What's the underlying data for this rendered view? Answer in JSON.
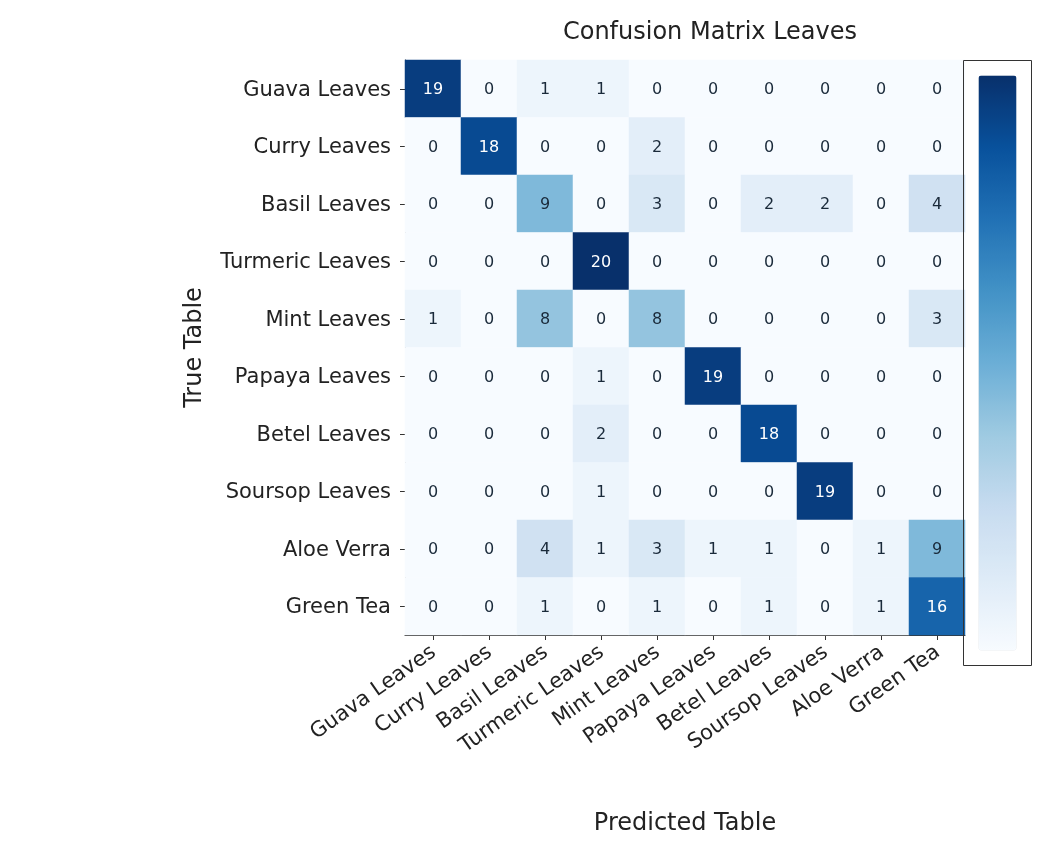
{
  "chart_data": {
    "type": "heatmap",
    "title": "Confusion Matrix Leaves",
    "xlabel": "Predicted Table",
    "ylabel": "True Table",
    "data_labels": true,
    "categories": [
      "Guava Leaves",
      "Curry Leaves",
      "Basil Leaves",
      "Turmeric Leaves",
      "Mint Leaves",
      "Papaya Leaves",
      "Betel Leaves",
      "Soursop Leaves",
      "Aloe Verra",
      "Green Tea"
    ],
    "y_categories": [
      "Guava Leaves",
      "Curry Leaves",
      "Basil Leaves",
      "Turmeric Leaves",
      "Mint Leaves",
      "Papaya Leaves",
      "Betel Leaves",
      "Soursop Leaves",
      "Aloe Verra",
      "Green Tea"
    ],
    "cells": [
      [
        19,
        0,
        1,
        1,
        0,
        0,
        0,
        0,
        0,
        0
      ],
      [
        0,
        18,
        0,
        0,
        2,
        0,
        0,
        0,
        0,
        0
      ],
      [
        0,
        0,
        9,
        0,
        3,
        0,
        2,
        2,
        0,
        4
      ],
      [
        0,
        0,
        0,
        20,
        0,
        0,
        0,
        0,
        0,
        0
      ],
      [
        1,
        0,
        8,
        0,
        8,
        0,
        0,
        0,
        0,
        3
      ],
      [
        0,
        0,
        0,
        1,
        0,
        19,
        0,
        0,
        0,
        0
      ],
      [
        0,
        0,
        0,
        2,
        0,
        0,
        18,
        0,
        0,
        0
      ],
      [
        0,
        0,
        0,
        1,
        0,
        0,
        0,
        19,
        0,
        0
      ],
      [
        0,
        0,
        4,
        1,
        3,
        1,
        1,
        0,
        1,
        9
      ],
      [
        0,
        0,
        1,
        0,
        1,
        0,
        1,
        0,
        1,
        16
      ]
    ]
  }
}
